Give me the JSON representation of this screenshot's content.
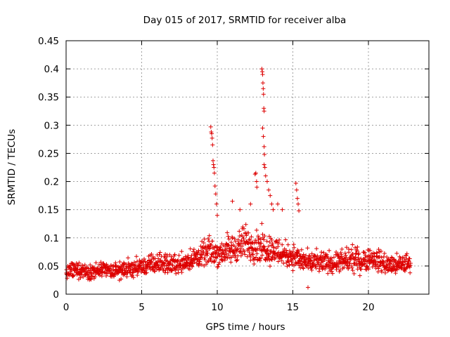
{
  "chart_data": {
    "type": "scatter",
    "title": "Day 015 of 2017, SRMTID for receiver alba",
    "xlabel": "GPS time / hours",
    "ylabel": "SRMTID / TECUs",
    "xlim": [
      0,
      24
    ],
    "ylim": [
      0,
      0.45
    ],
    "x_ticks": [
      0,
      5,
      10,
      15,
      20
    ],
    "x_tick_labels": [
      "0",
      "5",
      "10",
      "15",
      "20"
    ],
    "y_ticks": [
      0,
      0.05,
      0.1,
      0.15,
      0.2,
      0.25,
      0.3,
      0.35,
      0.4,
      0.45
    ],
    "y_tick_labels": [
      "0",
      "0.05",
      "0.1",
      "0.15",
      "0.2",
      "0.25",
      "0.3",
      "0.35",
      "0.4",
      "0.45"
    ],
    "grid": true,
    "marker": "+",
    "marker_color": "#dd0000",
    "x_range_of_data": [
      0,
      22.8
    ],
    "series": [
      {
        "name": "SRMTID",
        "envelope_x": [
          0.0,
          0.5,
          1.0,
          1.5,
          2.0,
          2.5,
          3.0,
          3.5,
          4.0,
          4.5,
          5.0,
          5.5,
          6.0,
          6.5,
          7.0,
          7.5,
          8.0,
          8.5,
          9.0,
          9.5,
          10.0,
          10.5,
          11.0,
          11.5,
          12.0,
          12.5,
          13.0,
          13.5,
          14.0,
          14.5,
          15.0,
          15.5,
          16.0,
          16.5,
          17.0,
          17.5,
          18.0,
          18.5,
          19.0,
          19.5,
          20.0,
          20.5,
          21.0,
          21.5,
          22.0,
          22.5,
          22.8
        ],
        "envelope_y_median": [
          0.038,
          0.04,
          0.042,
          0.04,
          0.04,
          0.042,
          0.04,
          0.042,
          0.043,
          0.045,
          0.047,
          0.05,
          0.053,
          0.053,
          0.052,
          0.053,
          0.057,
          0.062,
          0.068,
          0.075,
          0.072,
          0.075,
          0.078,
          0.085,
          0.09,
          0.085,
          0.085,
          0.08,
          0.075,
          0.07,
          0.068,
          0.06,
          0.055,
          0.055,
          0.055,
          0.055,
          0.055,
          0.058,
          0.06,
          0.058,
          0.063,
          0.06,
          0.055,
          0.05,
          0.05,
          0.055,
          0.055
        ],
        "envelope_y_low": [
          0.025,
          0.025,
          0.024,
          0.022,
          0.022,
          0.024,
          0.022,
          0.022,
          0.024,
          0.026,
          0.028,
          0.03,
          0.032,
          0.032,
          0.03,
          0.032,
          0.035,
          0.038,
          0.042,
          0.045,
          0.04,
          0.042,
          0.045,
          0.048,
          0.05,
          0.045,
          0.045,
          0.042,
          0.04,
          0.038,
          0.036,
          0.032,
          0.03,
          0.03,
          0.03,
          0.03,
          0.03,
          0.032,
          0.03,
          0.03,
          0.035,
          0.035,
          0.03,
          0.028,
          0.028,
          0.03,
          0.03
        ],
        "envelope_y_high": [
          0.06,
          0.065,
          0.065,
          0.062,
          0.062,
          0.065,
          0.062,
          0.065,
          0.068,
          0.07,
          0.072,
          0.078,
          0.082,
          0.082,
          0.08,
          0.082,
          0.088,
          0.095,
          0.1,
          0.115,
          0.11,
          0.115,
          0.12,
          0.13,
          0.14,
          0.13,
          0.13,
          0.12,
          0.115,
          0.105,
          0.1,
          0.09,
          0.085,
          0.085,
          0.085,
          0.085,
          0.085,
          0.09,
          0.095,
          0.09,
          0.095,
          0.09,
          0.085,
          0.078,
          0.078,
          0.082,
          0.082
        ],
        "spikes": [
          {
            "x": 9.57,
            "y": 0.297
          },
          {
            "x": 9.6,
            "y": 0.288
          },
          {
            "x": 9.63,
            "y": 0.285
          },
          {
            "x": 9.66,
            "y": 0.277
          },
          {
            "x": 9.69,
            "y": 0.265
          },
          {
            "x": 9.72,
            "y": 0.237
          },
          {
            "x": 9.75,
            "y": 0.23
          },
          {
            "x": 9.78,
            "y": 0.225
          },
          {
            "x": 9.81,
            "y": 0.215
          },
          {
            "x": 9.85,
            "y": 0.192
          },
          {
            "x": 9.9,
            "y": 0.178
          },
          {
            "x": 9.95,
            "y": 0.16
          },
          {
            "x": 10.0,
            "y": 0.14
          },
          {
            "x": 11.0,
            "y": 0.165
          },
          {
            "x": 11.5,
            "y": 0.15
          },
          {
            "x": 12.2,
            "y": 0.16
          },
          {
            "x": 12.5,
            "y": 0.213
          },
          {
            "x": 12.55,
            "y": 0.215
          },
          {
            "x": 12.6,
            "y": 0.2
          },
          {
            "x": 12.62,
            "y": 0.19
          },
          {
            "x": 12.95,
            "y": 0.4
          },
          {
            "x": 12.98,
            "y": 0.395
          },
          {
            "x": 13.0,
            "y": 0.39
          },
          {
            "x": 13.02,
            "y": 0.375
          },
          {
            "x": 13.04,
            "y": 0.365
          },
          {
            "x": 13.06,
            "y": 0.355
          },
          {
            "x": 13.08,
            "y": 0.33
          },
          {
            "x": 13.1,
            "y": 0.325
          },
          {
            "x": 13.0,
            "y": 0.295
          },
          {
            "x": 13.05,
            "y": 0.28
          },
          {
            "x": 13.1,
            "y": 0.262
          },
          {
            "x": 13.12,
            "y": 0.248
          },
          {
            "x": 13.1,
            "y": 0.23
          },
          {
            "x": 13.15,
            "y": 0.225
          },
          {
            "x": 13.2,
            "y": 0.21
          },
          {
            "x": 13.3,
            "y": 0.2
          },
          {
            "x": 13.4,
            "y": 0.185
          },
          {
            "x": 13.5,
            "y": 0.175
          },
          {
            "x": 13.6,
            "y": 0.16
          },
          {
            "x": 13.7,
            "y": 0.15
          },
          {
            "x": 14.0,
            "y": 0.16
          },
          {
            "x": 14.3,
            "y": 0.15
          },
          {
            "x": 15.2,
            "y": 0.197
          },
          {
            "x": 15.25,
            "y": 0.185
          },
          {
            "x": 15.3,
            "y": 0.17
          },
          {
            "x": 15.35,
            "y": 0.16
          },
          {
            "x": 15.4,
            "y": 0.148
          },
          {
            "x": 16.0,
            "y": 0.012
          }
        ]
      }
    ]
  }
}
